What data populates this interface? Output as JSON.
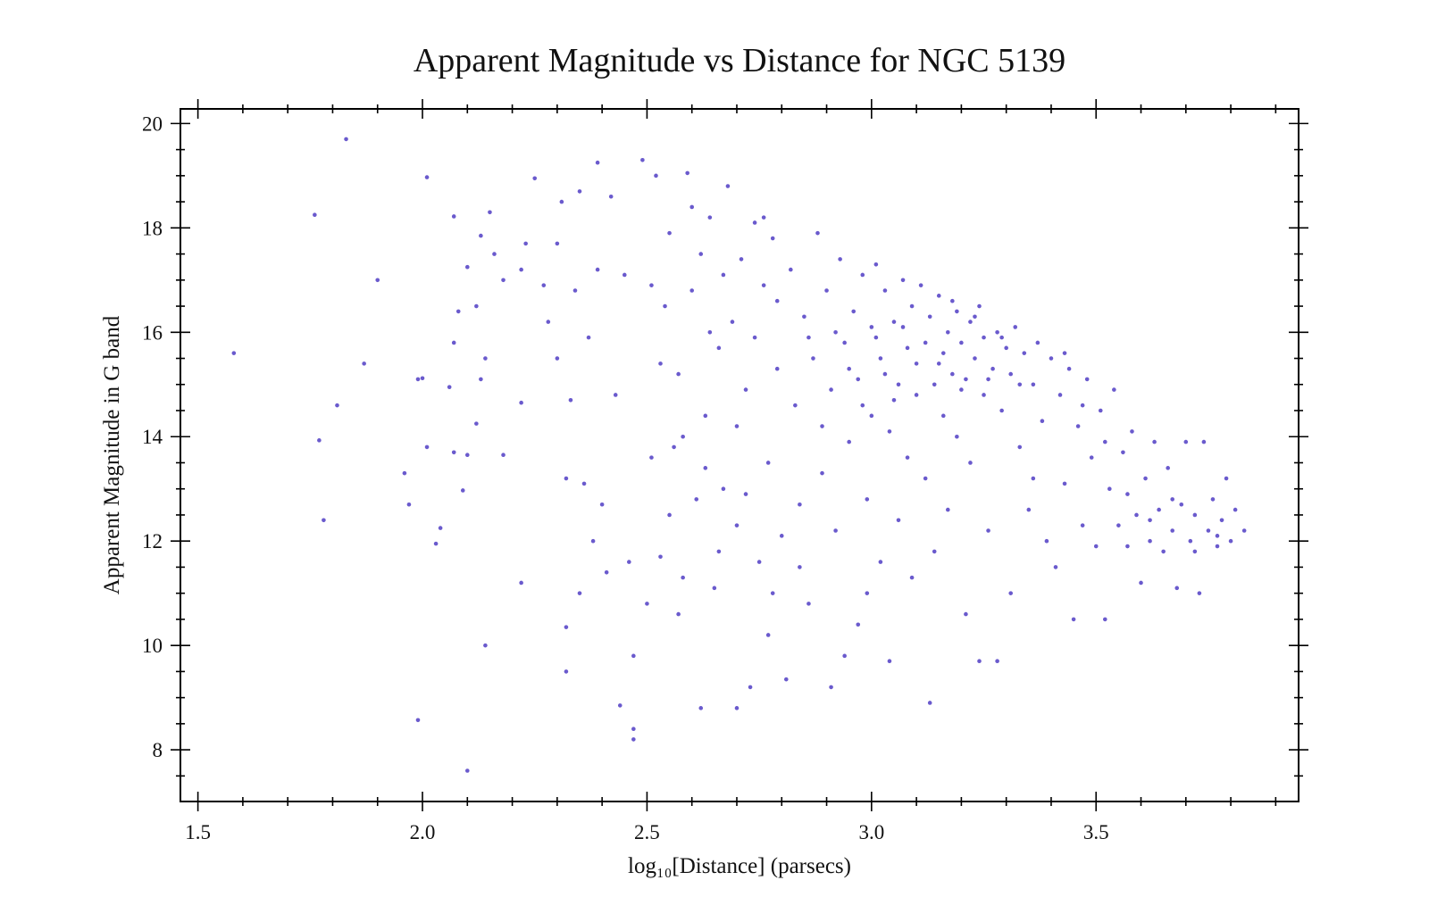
{
  "chart_data": {
    "type": "scatter",
    "title": "Apparent Magnitude vs Distance for NGC 5139",
    "xlabel": "log₁₀[Distance] (parsecs)",
    "ylabel": "Apparent Magnitude in G band",
    "xlim": [
      1.461,
      3.951
    ],
    "ylim": [
      7.01,
      20.28
    ],
    "xticks": [
      1.5,
      {
        "value": 2,
        "label": "2.0"
      },
      2.5,
      {
        "value": 3,
        "label": "3.0"
      },
      3.5
    ],
    "yticks": [
      8,
      10,
      12,
      14,
      16,
      18,
      20
    ],
    "xminorticks": [
      1.6,
      1.7,
      1.8,
      1.9,
      2.1,
      2.2,
      2.3,
      2.4,
      2.6,
      2.7,
      2.8,
      2.9,
      3.1,
      3.2,
      3.3,
      3.4,
      3.6,
      3.7,
      3.8,
      3.9
    ],
    "yminorticks": [
      7.5,
      8.5,
      9,
      9.5,
      10.5,
      11,
      11.5,
      12.5,
      13,
      13.5,
      14.5,
      15,
      15.5,
      16.5,
      17,
      17.5,
      18.5,
      19,
      19.5
    ],
    "series": [
      {
        "color": "#6a5acd",
        "x": [
          1.58,
          1.76,
          1.77,
          1.78,
          1.81,
          1.83,
          1.87,
          1.9,
          1.96,
          1.97,
          1.99,
          1.99,
          2.0,
          2.01,
          2.01,
          2.03,
          2.04,
          2.06,
          2.07,
          2.07,
          2.07,
          2.08,
          2.09,
          2.1,
          2.1,
          2.1,
          2.12,
          2.12,
          2.13,
          2.13,
          2.14,
          2.14,
          2.15,
          2.16,
          2.18,
          2.18,
          2.22,
          2.22,
          2.22,
          2.23,
          2.25,
          2.27,
          2.3,
          2.3,
          2.31,
          2.32,
          2.32,
          2.32,
          2.33,
          2.34,
          2.35,
          2.35,
          2.36,
          2.38,
          2.39,
          2.39,
          2.4,
          2.41,
          2.44,
          2.46,
          2.47,
          2.47,
          2.47,
          2.49,
          2.5,
          2.42,
          2.45,
          2.37,
          2.28,
          2.43,
          2.51,
          2.52,
          2.53,
          2.54,
          2.55,
          2.56,
          2.57,
          2.58,
          2.59,
          2.6,
          2.61,
          2.62,
          2.62,
          2.63,
          2.64,
          2.65,
          2.66,
          2.67,
          2.68,
          2.69,
          2.7,
          2.7,
          2.71,
          2.72,
          2.73,
          2.74,
          2.75,
          2.76,
          2.77,
          2.77,
          2.78,
          2.79,
          2.8,
          2.81,
          2.55,
          2.58,
          2.6,
          2.64,
          2.67,
          2.72,
          2.74,
          2.79,
          2.53,
          2.57,
          2.66,
          2.7,
          2.76,
          2.63,
          2.51,
          2.78,
          2.82,
          2.83,
          2.84,
          2.85,
          2.86,
          2.87,
          2.88,
          2.89,
          2.9,
          2.91,
          2.91,
          2.92,
          2.93,
          2.94,
          2.94,
          2.95,
          2.96,
          2.97,
          2.97,
          2.98,
          2.99,
          3.0,
          3.0,
          3.01,
          3.02,
          3.02,
          3.03,
          3.04,
          3.04,
          3.05,
          3.06,
          3.06,
          3.07,
          3.08,
          3.08,
          3.09,
          3.09,
          3.1,
          2.86,
          2.89,
          2.92,
          2.95,
          2.98,
          3.01,
          3.03,
          3.05,
          3.07,
          3.1,
          2.84,
          2.99,
          3.11,
          3.12,
          3.12,
          3.13,
          3.13,
          3.14,
          3.14,
          3.15,
          3.16,
          3.16,
          3.17,
          3.17,
          3.18,
          3.19,
          3.19,
          3.2,
          3.21,
          3.21,
          3.22,
          3.22,
          3.23,
          3.24,
          3.24,
          3.25,
          3.25,
          3.26,
          3.27,
          3.28,
          3.28,
          3.29,
          3.3,
          3.31,
          3.31,
          3.32,
          3.33,
          3.34,
          3.35,
          3.36,
          3.37,
          3.38,
          3.39,
          3.4,
          3.15,
          3.18,
          3.2,
          3.23,
          3.26,
          3.29,
          3.33,
          3.36,
          3.41,
          3.42,
          3.43,
          3.44,
          3.45,
          3.46,
          3.47,
          3.48,
          3.49,
          3.5,
          3.51,
          3.52,
          3.53,
          3.54,
          3.55,
          3.56,
          3.57,
          3.58,
          3.59,
          3.6,
          3.61,
          3.62,
          3.63,
          3.64,
          3.65,
          3.66,
          3.67,
          3.68,
          3.69,
          3.7,
          3.71,
          3.72,
          3.73,
          3.74,
          3.75,
          3.76,
          3.77,
          3.78,
          3.79,
          3.8,
          3.81,
          3.83,
          3.47,
          3.52,
          3.57,
          3.62,
          3.67,
          3.72,
          3.77,
          3.43
        ],
        "values": [
          15.6,
          18.25,
          13.93,
          12.4,
          14.6,
          19.7,
          15.4,
          17.0,
          13.3,
          12.7,
          15.1,
          8.57,
          15.12,
          13.8,
          18.97,
          11.95,
          12.25,
          14.95,
          13.7,
          15.8,
          18.22,
          16.4,
          12.97,
          13.65,
          17.25,
          7.6,
          14.25,
          16.5,
          15.1,
          17.85,
          10.0,
          15.5,
          18.3,
          17.5,
          17.0,
          13.65,
          17.2,
          14.65,
          11.2,
          17.7,
          18.95,
          16.9,
          17.7,
          15.5,
          18.5,
          13.2,
          10.35,
          9.5,
          14.7,
          16.8,
          11.0,
          18.7,
          13.1,
          12.0,
          19.25,
          17.2,
          12.7,
          11.4,
          8.85,
          11.6,
          8.2,
          8.4,
          9.8,
          19.3,
          10.8,
          18.6,
          17.1,
          15.9,
          16.2,
          14.8,
          13.6,
          19.0,
          11.7,
          16.5,
          17.9,
          13.8,
          15.2,
          11.3,
          19.05,
          16.8,
          12.8,
          8.8,
          17.5,
          14.4,
          18.2,
          11.1,
          15.7,
          13.0,
          18.8,
          16.2,
          8.8,
          12.3,
          17.4,
          14.9,
          9.2,
          18.1,
          11.6,
          16.9,
          10.2,
          13.5,
          17.8,
          15.3,
          12.1,
          9.35,
          12.5,
          14.0,
          18.4,
          16.0,
          17.1,
          12.9,
          15.9,
          16.6,
          15.4,
          10.6,
          11.8,
          14.2,
          18.2,
          13.4,
          16.9,
          11.0,
          17.2,
          14.6,
          12.7,
          16.3,
          10.8,
          15.5,
          17.9,
          13.3,
          16.8,
          9.2,
          14.9,
          12.2,
          17.4,
          15.8,
          9.8,
          13.9,
          16.4,
          10.4,
          15.1,
          17.1,
          12.8,
          16.1,
          14.4,
          17.3,
          15.5,
          11.6,
          16.8,
          9.7,
          14.1,
          16.2,
          15.0,
          12.4,
          17.0,
          15.7,
          13.6,
          16.5,
          11.3,
          14.8,
          15.9,
          14.2,
          16.0,
          15.3,
          14.6,
          15.9,
          15.2,
          14.7,
          16.1,
          15.4,
          11.5,
          11.0,
          16.9,
          15.8,
          13.2,
          8.9,
          16.3,
          15.0,
          11.8,
          16.7,
          14.4,
          15.6,
          16.0,
          12.6,
          15.2,
          16.4,
          14.0,
          15.8,
          10.6,
          15.1,
          16.2,
          13.5,
          15.5,
          9.7,
          16.5,
          14.8,
          15.9,
          12.2,
          15.3,
          9.7,
          16.0,
          14.5,
          15.7,
          11.0,
          15.2,
          16.1,
          13.8,
          15.6,
          12.6,
          15.0,
          15.8,
          14.3,
          12.0,
          15.5,
          15.4,
          16.6,
          14.9,
          16.3,
          15.1,
          15.9,
          15.0,
          13.2,
          11.5,
          14.8,
          13.1,
          15.3,
          10.5,
          14.2,
          12.3,
          15.1,
          13.6,
          11.9,
          14.5,
          10.5,
          13.0,
          14.9,
          12.3,
          13.7,
          11.9,
          14.1,
          12.5,
          11.2,
          13.2,
          12.0,
          13.9,
          12.6,
          11.8,
          13.4,
          12.2,
          11.1,
          12.7,
          13.9,
          12.0,
          12.5,
          11.0,
          13.9,
          12.2,
          12.8,
          11.9,
          12.4,
          13.2,
          12.0,
          12.6,
          12.2,
          14.6,
          13.9,
          12.9,
          12.4,
          12.8,
          11.8,
          12.1,
          15.6
        ]
      }
    ]
  }
}
